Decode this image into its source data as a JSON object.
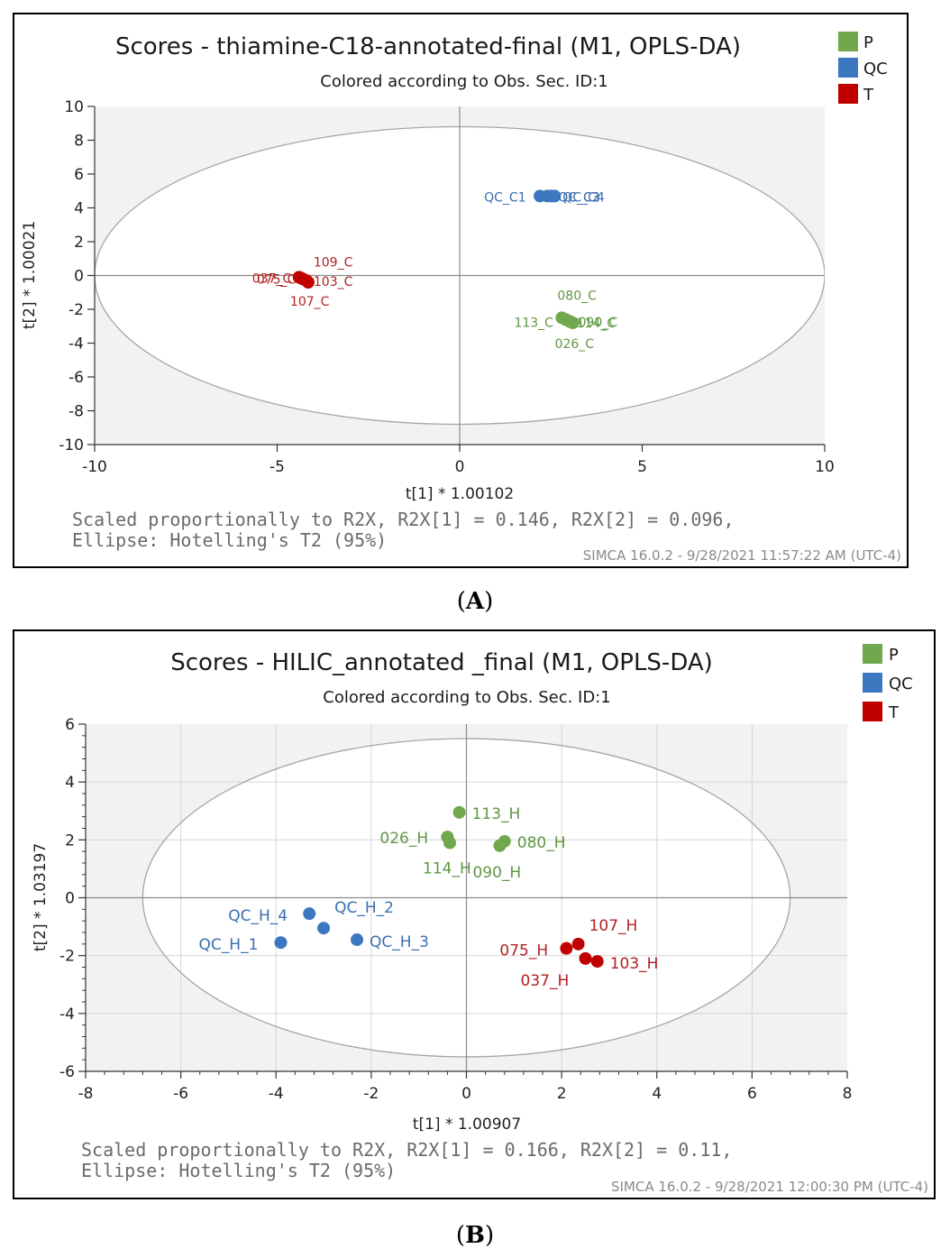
{
  "chart_data": [
    {
      "type": "scatter",
      "panel_label": "A",
      "title": "Scores - thiamine-C18-annotated-final (M1, OPLS-DA)",
      "subtitle": "Colored according to Obs. Sec. ID:1",
      "xlabel": "t[1] * 1.00102",
      "ylabel": "t[2] * 1.00021",
      "xlim": [
        -10,
        10
      ],
      "ylim": [
        -10,
        10
      ],
      "xticks": [
        -10,
        -5,
        0,
        5,
        10
      ],
      "yticks": [
        -10,
        -8,
        -6,
        -4,
        -2,
        0,
        2,
        4,
        6,
        8,
        10
      ],
      "grid": false,
      "legend_position": "top-right",
      "ellipse": {
        "rx": 10.0,
        "ry": 8.8
      },
      "series": [
        {
          "name": "P",
          "color": "#70a84d",
          "label_color": "#5f9742",
          "points": [
            {
              "x": 2.8,
              "y": -2.5,
              "label": "080_C",
              "dx": -5,
              "dy": -20,
              "anchor": "start"
            },
            {
              "x": 2.9,
              "y": -2.6,
              "label": "113_C",
              "dx": -57,
              "dy": 8,
              "anchor": "start"
            },
            {
              "x": 3.0,
              "y": -2.7,
              "label": "090_C",
              "dx": 10,
              "dy": 6,
              "anchor": "start"
            },
            {
              "x": 3.05,
              "y": -2.75,
              "label": "114_C",
              "dx": 6,
              "dy": 6,
              "anchor": "start"
            },
            {
              "x": 3.1,
              "y": -2.8,
              "label": "026_C",
              "dx": -20,
              "dy": 28,
              "anchor": "start"
            }
          ]
        },
        {
          "name": "QC",
          "color": "#3c78c0",
          "label_color": "#3a6fb0",
          "points": [
            {
              "x": 2.2,
              "y": 4.7,
              "label": "QC_C1",
              "dx": -62,
              "dy": 6,
              "anchor": "start"
            },
            {
              "x": 2.4,
              "y": 4.7,
              "label": "QC_C2",
              "dx": 12,
              "dy": 6,
              "anchor": "start"
            },
            {
              "x": 2.5,
              "y": 4.7,
              "label": "QC_C3",
              "dx": 8,
              "dy": 6,
              "anchor": "start"
            },
            {
              "x": 2.6,
              "y": 4.7,
              "label": "QC_C4",
              "dx": 9,
              "dy": 6,
              "anchor": "start"
            }
          ]
        },
        {
          "name": "T",
          "color": "#c00000",
          "label_color": "#b22222",
          "points": [
            {
              "x": -4.4,
              "y": -0.1,
              "label": "037_C",
              "dx": -52,
              "dy": 6,
              "anchor": "start"
            },
            {
              "x": -4.35,
              "y": -0.15,
              "label": "075_C",
              "dx": -49,
              "dy": 6,
              "anchor": "start"
            },
            {
              "x": -4.3,
              "y": -0.2,
              "label": "109_C",
              "dx": 12,
              "dy": -14,
              "anchor": "start"
            },
            {
              "x": -4.2,
              "y": -0.3,
              "label": "103_C",
              "dx": 8,
              "dy": 6,
              "anchor": "start"
            },
            {
              "x": -4.15,
              "y": -0.4,
              "label": "107_C",
              "dx": -20,
              "dy": 26,
              "anchor": "start"
            }
          ]
        }
      ],
      "footnote_line1": "Scaled proportionally to R2X, R2X[1] = 0.146, R2X[2] = 0.096,",
      "footnote_line2": "Ellipse: Hotelling's T2 (95%)",
      "software_stamp": "SIMCA 16.0.2 - 9/28/2021 11:57:22 AM (UTC-4)"
    },
    {
      "type": "scatter",
      "panel_label": "B",
      "title": "Scores - HILIC_annotated _final (M1, OPLS-DA)",
      "subtitle": "Colored according to Obs. Sec. ID:1",
      "xlabel": "t[1] * 1.00907",
      "ylabel": "t[2] * 1.03197",
      "xlim": [
        -8,
        8
      ],
      "ylim": [
        -6,
        6
      ],
      "xticks": [
        -8,
        -6,
        -4,
        -2,
        0,
        2,
        4,
        6,
        8
      ],
      "yticks": [
        -6,
        -4,
        -2,
        0,
        2,
        4,
        6
      ],
      "grid": true,
      "legend_position": "top-right",
      "ellipse": {
        "rx": 6.8,
        "ry": 5.5
      },
      "series": [
        {
          "name": "P",
          "color": "#70a84d",
          "label_color": "#5f9742",
          "points": [
            {
              "x": -0.15,
              "y": 2.95,
              "label": "113_H",
              "dx": 14,
              "dy": 7,
              "anchor": "start"
            },
            {
              "x": -0.4,
              "y": 2.1,
              "label": "026_H",
              "dx": -75,
              "dy": 7,
              "anchor": "start"
            },
            {
              "x": -0.35,
              "y": 1.9,
              "label": "114_H",
              "dx": -30,
              "dy": 34,
              "anchor": "start"
            },
            {
              "x": 0.7,
              "y": 1.8,
              "label": "090_H",
              "dx": -30,
              "dy": 35,
              "anchor": "start"
            },
            {
              "x": 0.8,
              "y": 1.95,
              "label": "080_H",
              "dx": 14,
              "dy": 7,
              "anchor": "start"
            }
          ]
        },
        {
          "name": "QC",
          "color": "#3c78c0",
          "label_color": "#3a6fb0",
          "points": [
            {
              "x": -3.3,
              "y": -0.55,
              "label": "QC_H_4",
              "dx": -90,
              "dy": 8,
              "anchor": "start"
            },
            {
              "x": -3.0,
              "y": -1.05,
              "label": "QC_H_2",
              "dx": 12,
              "dy": -17,
              "anchor": "start"
            },
            {
              "x": -3.9,
              "y": -1.55,
              "label": "QC_H_1",
              "dx": -91,
              "dy": 8,
              "anchor": "start"
            },
            {
              "x": -2.3,
              "y": -1.45,
              "label": "QC_H_3",
              "dx": 14,
              "dy": 8,
              "anchor": "start"
            }
          ]
        },
        {
          "name": "T",
          "color": "#c00000",
          "label_color": "#b22222",
          "points": [
            {
              "x": 2.35,
              "y": -1.6,
              "label": "107_H",
              "dx": 12,
              "dy": -15,
              "anchor": "start"
            },
            {
              "x": 2.1,
              "y": -1.75,
              "label": "075_H",
              "dx": -74,
              "dy": 8,
              "anchor": "start"
            },
            {
              "x": 2.5,
              "y": -2.1,
              "label": "037_H",
              "dx": -72,
              "dy": 30,
              "anchor": "start"
            },
            {
              "x": 2.75,
              "y": -2.2,
              "label": "103_H",
              "dx": 14,
              "dy": 8,
              "anchor": "start"
            }
          ]
        }
      ],
      "footnote_line1": "Scaled proportionally to R2X, R2X[1] = 0.166, R2X[2] = 0.11,",
      "footnote_line2": "Ellipse: Hotelling's T2 (95%)",
      "software_stamp": "SIMCA 16.0.2 - 9/28/2021 12:00:30 PM (UTC-4)"
    }
  ]
}
